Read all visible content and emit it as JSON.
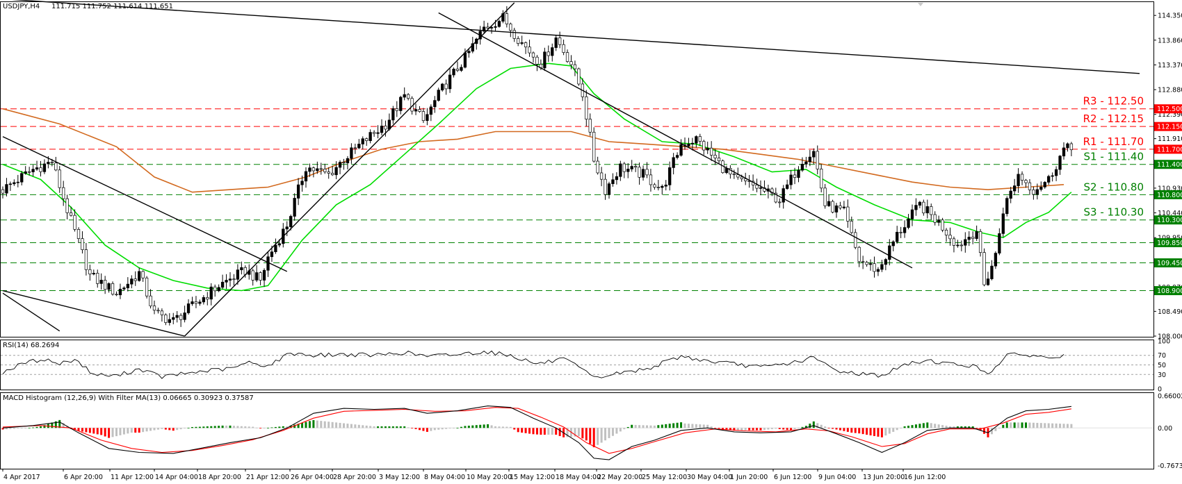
{
  "colors": {
    "background": "#ffffff",
    "bull_candle": "#000000",
    "bear_candle": "#ffffff",
    "ma_fast": "#00dd00",
    "ma_slow": "#d2691e",
    "level_support": "#008000",
    "level_resistance": "#ff0000",
    "badge_support": "#008000",
    "badge_resistance": "#ff0000",
    "trendline": "#000000",
    "rsi_line": "#000000",
    "macd_line": "#000000",
    "signal_line": "#ff0000",
    "hist_pos_rising": "#008000",
    "hist_neg_falling": "#ff0000",
    "hist_neutral": "#c0c0c0"
  },
  "header": {
    "instrument_label": "USDJPY,H4",
    "ohlc_values": "111.715 111.752 111.614 111.651"
  },
  "chart_data": [
    {
      "type": "candlestick",
      "title": "USDJPY,H4  111.715 111.752 111.614 111.651",
      "ylim": [
        108.0,
        114.6
      ],
      "yticks": [
        "114.350",
        "113.860",
        "113.370",
        "112.880",
        "112.390",
        "111.910",
        "111.420",
        "110.930",
        "110.440",
        "109.950",
        "109.460",
        "108.970",
        "108.490",
        "108.000"
      ],
      "xticks": [
        "4 Apr 2017",
        "6 Apr 20:00",
        "11 Apr 12:00",
        "14 Apr 04:00",
        "18 Apr 20:00",
        "21 Apr 12:00",
        "26 Apr 04:00",
        "28 Apr 20:00",
        "3 May 12:00",
        "8 May 04:00",
        "10 May 20:00",
        "15 May 12:00",
        "18 May 04:00",
        "22 May 20:00",
        "25 May 12:00",
        "30 May 04:00",
        "1 Jun 20:00",
        "6 Jun 12:00",
        "9 Jun 04:00",
        "13 Jun 20:00",
        "16 Jun 12:00"
      ],
      "close_path": [
        [
          0,
          110.9
        ],
        [
          8,
          111.3
        ],
        [
          13,
          111.45
        ],
        [
          17,
          110.5
        ],
        [
          23,
          109.2
        ],
        [
          30,
          108.85
        ],
        [
          36,
          109.25
        ],
        [
          40,
          108.45
        ],
        [
          45,
          108.3
        ],
        [
          51,
          108.65
        ],
        [
          57,
          109.0
        ],
        [
          64,
          109.3
        ],
        [
          68,
          109.1
        ],
        [
          70,
          109.55
        ],
        [
          75,
          110.2
        ],
        [
          80,
          111.35
        ],
        [
          86,
          111.2
        ],
        [
          90,
          111.5
        ],
        [
          96,
          111.9
        ],
        [
          101,
          112.2
        ],
        [
          106,
          112.75
        ],
        [
          111,
          112.25
        ],
        [
          116,
          112.9
        ],
        [
          122,
          113.5
        ],
        [
          127,
          114.1
        ],
        [
          132,
          114.3
        ],
        [
          137,
          113.8
        ],
        [
          142,
          113.4
        ],
        [
          146,
          113.9
        ],
        [
          150,
          113.4
        ],
        [
          153,
          112.8
        ],
        [
          156,
          111.5
        ],
        [
          159,
          110.9
        ],
        [
          163,
          111.35
        ],
        [
          169,
          111.2
        ],
        [
          174,
          110.9
        ],
        [
          179,
          111.8
        ],
        [
          183,
          111.9
        ],
        [
          188,
          111.5
        ],
        [
          193,
          111.1
        ],
        [
          199,
          110.95
        ],
        [
          205,
          110.7
        ],
        [
          211,
          111.5
        ],
        [
          214,
          111.65
        ],
        [
          217,
          110.6
        ],
        [
          222,
          110.45
        ],
        [
          226,
          109.5
        ],
        [
          231,
          109.3
        ],
        [
          236,
          110.0
        ],
        [
          242,
          110.6
        ],
        [
          247,
          110.25
        ],
        [
          252,
          109.8
        ],
        [
          257,
          110.1
        ],
        [
          259,
          109.0
        ],
        [
          262,
          109.6
        ],
        [
          264,
          110.5
        ],
        [
          268,
          111.2
        ],
        [
          272,
          110.9
        ],
        [
          276,
          111.1
        ],
        [
          280,
          111.7
        ]
      ],
      "ma_fast_values": [
        [
          0,
          111.4
        ],
        [
          10,
          111.1
        ],
        [
          18,
          110.55
        ],
        [
          27,
          109.8
        ],
        [
          36,
          109.35
        ],
        [
          45,
          109.1
        ],
        [
          54,
          108.95
        ],
        [
          63,
          108.9
        ],
        [
          70,
          109.0
        ],
        [
          79,
          109.9
        ],
        [
          88,
          110.6
        ],
        [
          97,
          111.0
        ],
        [
          106,
          111.6
        ],
        [
          115,
          112.2
        ],
        [
          125,
          112.9
        ],
        [
          134,
          113.3
        ],
        [
          144,
          113.4
        ],
        [
          150,
          113.35
        ],
        [
          156,
          112.8
        ],
        [
          164,
          112.3
        ],
        [
          174,
          111.85
        ],
        [
          183,
          111.8
        ],
        [
          193,
          111.55
        ],
        [
          203,
          111.25
        ],
        [
          212,
          111.3
        ],
        [
          220,
          110.95
        ],
        [
          230,
          110.6
        ],
        [
          240,
          110.3
        ],
        [
          250,
          110.25
        ],
        [
          258,
          110.05
        ],
        [
          264,
          109.95
        ],
        [
          270,
          110.25
        ],
        [
          276,
          110.45
        ],
        [
          282,
          110.85
        ]
      ],
      "ma_slow_values": [
        [
          0,
          112.5
        ],
        [
          15,
          112.2
        ],
        [
          30,
          111.75
        ],
        [
          40,
          111.15
        ],
        [
          50,
          110.85
        ],
        [
          60,
          110.9
        ],
        [
          70,
          110.95
        ],
        [
          80,
          111.15
        ],
        [
          90,
          111.45
        ],
        [
          100,
          111.7
        ],
        [
          110,
          111.85
        ],
        [
          120,
          111.9
        ],
        [
          130,
          112.05
        ],
        [
          140,
          112.05
        ],
        [
          150,
          112.05
        ],
        [
          160,
          111.85
        ],
        [
          170,
          111.8
        ],
        [
          180,
          111.75
        ],
        [
          190,
          111.7
        ],
        [
          200,
          111.6
        ],
        [
          210,
          111.5
        ],
        [
          220,
          111.35
        ],
        [
          230,
          111.2
        ],
        [
          240,
          111.05
        ],
        [
          250,
          110.95
        ],
        [
          260,
          110.9
        ],
        [
          270,
          110.95
        ],
        [
          280,
          111.0
        ]
      ],
      "levels": [
        {
          "price": 112.5,
          "kind": "resistance",
          "line_label": "R3 - 112.50",
          "badge": "112.500"
        },
        {
          "price": 112.15,
          "kind": "resistance",
          "line_label": "R2 - 112.15",
          "badge": "112.150"
        },
        {
          "price": 111.7,
          "kind": "resistance",
          "line_label": "R1 - 111.70",
          "badge": "111.700"
        },
        {
          "price": 111.4,
          "kind": "support",
          "line_label": "S1 - 111.40",
          "badge": "111.400"
        },
        {
          "price": 110.8,
          "kind": "support",
          "line_label": "S2 - 110.80",
          "badge": "110.800"
        },
        {
          "price": 110.3,
          "kind": "support",
          "line_label": "S3 - 110.30",
          "badge": "110.300"
        },
        {
          "price": 109.85,
          "kind": "support",
          "line_label": "",
          "badge": "109.850"
        },
        {
          "price": 109.45,
          "kind": "support",
          "line_label": "",
          "badge": "109.450"
        },
        {
          "price": 108.9,
          "kind": "support",
          "line_label": "",
          "badge": "108.900"
        }
      ],
      "trendlines": [
        {
          "from": [
            -5,
            114.7
          ],
          "to": [
            300,
            113.2
          ]
        },
        {
          "from": [
            0,
            111.95
          ],
          "to": [
            75,
            109.28
          ]
        },
        {
          "from": [
            0,
            108.9
          ],
          "to": [
            48,
            108.0
          ]
        },
        {
          "from": [
            0,
            108.85
          ],
          "to": [
            15,
            108.1
          ]
        },
        {
          "from": [
            48,
            108.0
          ],
          "to": [
            135,
            114.6
          ]
        },
        {
          "from": [
            115,
            114.4
          ],
          "to": [
            240,
            109.35
          ]
        }
      ]
    },
    {
      "type": "line",
      "title": "RSI(14) 68.2694",
      "ylim": [
        0,
        100
      ],
      "yticks": [
        "100",
        "70",
        "50",
        "30",
        "0"
      ],
      "guides": [
        70,
        50,
        30
      ],
      "series": [
        {
          "name": "RSI(14)",
          "values": [
            [
              0,
              35
            ],
            [
              6,
              55
            ],
            [
              11,
              62
            ],
            [
              15,
              52
            ],
            [
              19,
              62
            ],
            [
              24,
              30
            ],
            [
              30,
              27
            ],
            [
              36,
              42
            ],
            [
              42,
              25
            ],
            [
              48,
              32
            ],
            [
              54,
              38
            ],
            [
              60,
              42
            ],
            [
              65,
              55
            ],
            [
              70,
              48
            ],
            [
              76,
              75
            ],
            [
              82,
              70
            ],
            [
              90,
              72
            ],
            [
              98,
              70
            ],
            [
              106,
              76
            ],
            [
              112,
              68
            ],
            [
              120,
              72
            ],
            [
              127,
              78
            ],
            [
              134,
              70
            ],
            [
              141,
              52
            ],
            [
              148,
              62
            ],
            [
              153,
              40
            ],
            [
              156,
              22
            ],
            [
              162,
              32
            ],
            [
              170,
              42
            ],
            [
              179,
              68
            ],
            [
              186,
              58
            ],
            [
              193,
              52
            ],
            [
              200,
              45
            ],
            [
              208,
              54
            ],
            [
              214,
              65
            ],
            [
              220,
              38
            ],
            [
              226,
              32
            ],
            [
              232,
              28
            ],
            [
              238,
              50
            ],
            [
              244,
              60
            ],
            [
              250,
              52
            ],
            [
              256,
              48
            ],
            [
              260,
              32
            ],
            [
              265,
              70
            ],
            [
              270,
              72
            ],
            [
              275,
              65
            ],
            [
              280,
              68
            ]
          ]
        }
      ]
    },
    {
      "type": "bar",
      "title": "MACD Histogram (12,26,9) With Filter MA(13) 0.06665 0.30923 0.37587",
      "ylim": [
        -0.82,
        0.7
      ],
      "yticks": [
        "0.66002",
        "0.00",
        "-0.76734"
      ],
      "macd_values": [
        [
          0,
          0.0
        ],
        [
          8,
          0.05
        ],
        [
          15,
          0.12
        ],
        [
          20,
          -0.1
        ],
        [
          28,
          -0.42
        ],
        [
          36,
          -0.5
        ],
        [
          45,
          -0.52
        ],
        [
          52,
          -0.42
        ],
        [
          60,
          -0.3
        ],
        [
          68,
          -0.2
        ],
        [
          75,
          0.0
        ],
        [
          82,
          0.3
        ],
        [
          90,
          0.4
        ],
        [
          98,
          0.38
        ],
        [
          106,
          0.4
        ],
        [
          112,
          0.3
        ],
        [
          120,
          0.35
        ],
        [
          128,
          0.45
        ],
        [
          134,
          0.42
        ],
        [
          140,
          0.2
        ],
        [
          146,
          0.0
        ],
        [
          152,
          -0.3
        ],
        [
          156,
          -0.62
        ],
        [
          160,
          -0.65
        ],
        [
          166,
          -0.38
        ],
        [
          172,
          -0.25
        ],
        [
          179,
          -0.05
        ],
        [
          186,
          0.0
        ],
        [
          193,
          -0.08
        ],
        [
          200,
          -0.1
        ],
        [
          208,
          -0.08
        ],
        [
          214,
          0.05
        ],
        [
          220,
          -0.12
        ],
        [
          226,
          -0.3
        ],
        [
          232,
          -0.5
        ],
        [
          238,
          -0.3
        ],
        [
          244,
          -0.05
        ],
        [
          250,
          0.0
        ],
        [
          256,
          0.0
        ],
        [
          260,
          -0.1
        ],
        [
          265,
          0.2
        ],
        [
          270,
          0.35
        ],
        [
          276,
          0.38
        ],
        [
          282,
          0.44
        ]
      ],
      "signal_values": [
        [
          0,
          0.02
        ],
        [
          10,
          0.05
        ],
        [
          18,
          0.0
        ],
        [
          26,
          -0.25
        ],
        [
          34,
          -0.42
        ],
        [
          42,
          -0.5
        ],
        [
          50,
          -0.46
        ],
        [
          58,
          -0.36
        ],
        [
          66,
          -0.24
        ],
        [
          74,
          -0.05
        ],
        [
          82,
          0.2
        ],
        [
          90,
          0.34
        ],
        [
          98,
          0.36
        ],
        [
          106,
          0.38
        ],
        [
          114,
          0.34
        ],
        [
          122,
          0.35
        ],
        [
          130,
          0.42
        ],
        [
          136,
          0.4
        ],
        [
          142,
          0.22
        ],
        [
          148,
          0.02
        ],
        [
          154,
          -0.3
        ],
        [
          160,
          -0.52
        ],
        [
          166,
          -0.42
        ],
        [
          172,
          -0.28
        ],
        [
          180,
          -0.1
        ],
        [
          188,
          -0.02
        ],
        [
          196,
          -0.06
        ],
        [
          204,
          -0.08
        ],
        [
          212,
          -0.02
        ],
        [
          218,
          -0.06
        ],
        [
          224,
          -0.18
        ],
        [
          232,
          -0.38
        ],
        [
          238,
          -0.32
        ],
        [
          244,
          -0.12
        ],
        [
          250,
          -0.02
        ],
        [
          258,
          -0.02
        ],
        [
          264,
          0.1
        ],
        [
          270,
          0.28
        ],
        [
          276,
          0.32
        ],
        [
          282,
          0.39
        ]
      ]
    }
  ]
}
